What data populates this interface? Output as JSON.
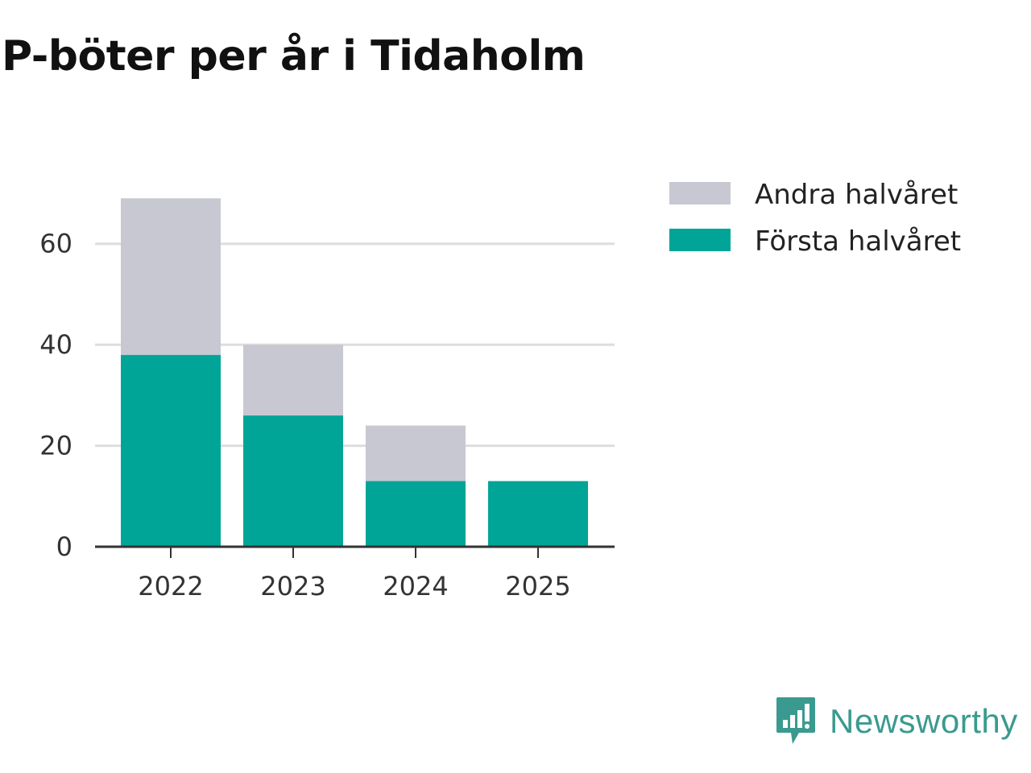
{
  "chart_data": {
    "type": "bar",
    "stacked": true,
    "title": "P-böter per år i Tidaholm",
    "categories": [
      "2022",
      "2023",
      "2024",
      "2025"
    ],
    "series": [
      {
        "name": "Första halvåret",
        "values": [
          38,
          26,
          13,
          13
        ],
        "color": "#00a598"
      },
      {
        "name": "Andra halvåret",
        "values": [
          31,
          14,
          11,
          0
        ],
        "color": "#c8c8d2"
      }
    ],
    "legend_order": [
      "Andra halvåret",
      "Första halvåret"
    ],
    "legend_position": "top-right",
    "xlabel": "",
    "ylabel": "",
    "yticks": [
      0,
      20,
      40,
      60
    ],
    "ylim": [
      0,
      70
    ],
    "grid": true,
    "grid_color": "#dddddd",
    "axis_color": "#333333"
  },
  "branding": {
    "name": "Newsworthy",
    "icon": "newsworthy-logo-icon",
    "color": "#3a9a8f"
  }
}
